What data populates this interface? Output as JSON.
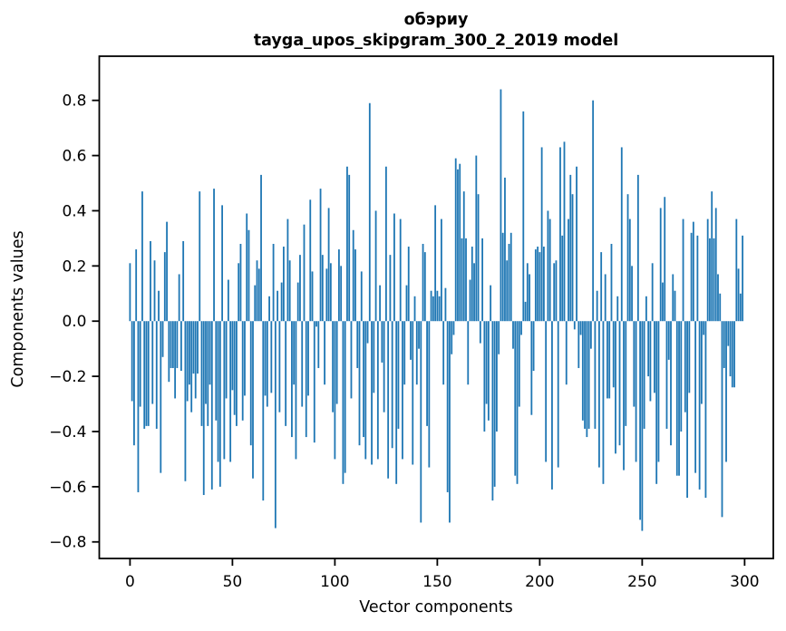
{
  "figure": {
    "title_line1": "обэриу",
    "title_line2": "tayga_upos_skipgram_300_2_2019 model"
  },
  "chart_data": {
    "type": "bar",
    "title": "обэриу — tayga_upos_skipgram_300_2_2019 model",
    "xlabel": "Vector components",
    "ylabel": "Components values",
    "x_tick_values": [
      0,
      50,
      100,
      150,
      200,
      250,
      300
    ],
    "x_tick_labels": [
      "0",
      "50",
      "100",
      "150",
      "200",
      "250",
      "300"
    ],
    "y_tick_values": [
      -0.8,
      -0.6,
      -0.4,
      -0.2,
      0.0,
      0.2,
      0.4,
      0.6,
      0.8
    ],
    "y_tick_labels": [
      "−0.8",
      "−0.6",
      "−0.4",
      "−0.2",
      "0.0",
      "0.2",
      "0.4",
      "0.6",
      "0.8"
    ],
    "xlim": [
      -15,
      314
    ],
    "ylim": [
      -0.86,
      0.96
    ],
    "grid": false,
    "legend": "none",
    "bar_color": "#1f77b4",
    "spine_color": "#000000",
    "n_components": 300,
    "values": [
      0.21,
      -0.29,
      -0.45,
      0.26,
      -0.62,
      -0.31,
      0.47,
      -0.39,
      -0.38,
      -0.38,
      0.29,
      -0.3,
      0.22,
      -0.39,
      0.11,
      -0.55,
      -0.13,
      0.25,
      0.36,
      -0.22,
      -0.17,
      -0.17,
      -0.28,
      -0.17,
      0.17,
      -0.18,
      0.29,
      -0.58,
      -0.29,
      -0.23,
      -0.33,
      -0.19,
      -0.28,
      -0.19,
      0.47,
      -0.38,
      -0.63,
      -0.3,
      -0.38,
      -0.23,
      -0.61,
      0.48,
      -0.36,
      -0.51,
      -0.6,
      0.42,
      -0.5,
      -0.28,
      0.15,
      -0.51,
      -0.25,
      -0.34,
      -0.38,
      0.21,
      0.28,
      -0.36,
      -0.27,
      0.39,
      0.33,
      -0.45,
      -0.57,
      0.13,
      0.22,
      0.19,
      0.53,
      -0.65,
      -0.27,
      -0.31,
      0.09,
      -0.26,
      0.28,
      -0.75,
      0.11,
      -0.33,
      0.14,
      0.27,
      -0.38,
      0.37,
      0.22,
      -0.42,
      -0.23,
      -0.5,
      0.14,
      0.24,
      -0.31,
      0.35,
      -0.42,
      -0.27,
      0.44,
      0.18,
      -0.44,
      -0.02,
      -0.17,
      0.48,
      0.24,
      -0.23,
      0.19,
      0.41,
      0.21,
      -0.33,
      -0.5,
      -0.3,
      0.26,
      0.2,
      -0.59,
      -0.55,
      0.56,
      0.53,
      -0.28,
      0.33,
      0.26,
      -0.17,
      -0.45,
      0.18,
      -0.42,
      -0.5,
      -0.08,
      0.79,
      -0.52,
      -0.26,
      0.4,
      -0.5,
      0.13,
      -0.15,
      -0.33,
      0.56,
      -0.57,
      0.24,
      -0.46,
      0.39,
      -0.59,
      -0.39,
      0.37,
      -0.5,
      -0.23,
      0.13,
      0.27,
      -0.14,
      -0.52,
      0.09,
      -0.23,
      -0.1,
      -0.73,
      0.28,
      0.25,
      -0.38,
      -0.53,
      0.11,
      0.09,
      0.42,
      0.11,
      0.09,
      0.37,
      -0.23,
      0.12,
      -0.62,
      -0.73,
      -0.12,
      -0.05,
      0.59,
      0.55,
      0.57,
      0.3,
      0.47,
      0.3,
      -0.23,
      0.15,
      0.27,
      0.21,
      0.6,
      0.46,
      -0.08,
      0.3,
      -0.4,
      -0.3,
      -0.36,
      0.13,
      -0.65,
      -0.6,
      -0.4,
      -0.12,
      0.84,
      0.32,
      0.52,
      0.22,
      0.28,
      0.32,
      -0.1,
      -0.56,
      -0.59,
      -0.31,
      -0.05,
      0.76,
      0.07,
      0.21,
      0.17,
      -0.34,
      -0.18,
      0.26,
      0.27,
      0.25,
      0.63,
      0.27,
      -0.51,
      0.4,
      0.37,
      -0.61,
      0.21,
      0.22,
      -0.53,
      0.63,
      0.31,
      0.65,
      -0.23,
      0.37,
      0.53,
      0.46,
      -0.03,
      0.56,
      -0.17,
      -0.05,
      -0.36,
      -0.39,
      -0.42,
      -0.39,
      -0.1,
      0.8,
      -0.39,
      0.11,
      -0.53,
      0.25,
      -0.59,
      0.17,
      -0.28,
      -0.28,
      0.28,
      -0.24,
      -0.48,
      0.09,
      -0.45,
      0.63,
      -0.54,
      -0.38,
      0.46,
      0.37,
      0.2,
      -0.31,
      -0.51,
      0.53,
      -0.72,
      -0.76,
      -0.39,
      0.09,
      -0.2,
      -0.29,
      0.21,
      -0.26,
      -0.59,
      -0.51,
      0.41,
      0.14,
      0.45,
      -0.39,
      -0.14,
      -0.45,
      0.17,
      0.11,
      -0.56,
      -0.56,
      -0.4,
      0.37,
      -0.33,
      -0.64,
      -0.26,
      0.32,
      0.36,
      -0.55,
      0.31,
      -0.61,
      -0.3,
      -0.05,
      -0.64,
      0.37,
      0.3,
      0.47,
      0.3,
      0.41,
      0.17,
      0.1,
      -0.71,
      -0.17,
      -0.51,
      -0.09,
      -0.2,
      -0.24,
      -0.24,
      0.37,
      0.19,
      0.1,
      0.31
    ]
  }
}
